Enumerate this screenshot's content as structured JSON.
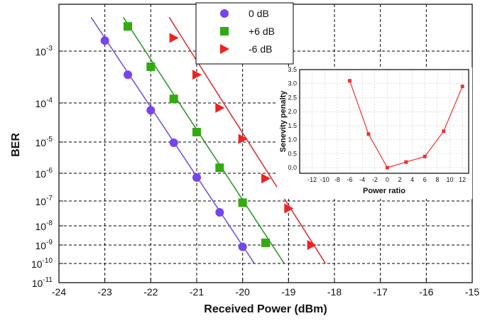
{
  "chart_data": [
    {
      "type": "line",
      "xlabel": "Received Power (dBm)",
      "ylabel": "BER",
      "xlim": [
        -24,
        -15
      ],
      "x_ticks": [
        "-24",
        "-23",
        "-22",
        "-21",
        "-20",
        "-19",
        "-18",
        "-17",
        "-16",
        "-15"
      ],
      "y_scale": "log",
      "y_ticks": [
        "10^-3",
        "10^-4",
        "10^-5",
        "10^-6",
        "10^-7",
        "10^-8",
        "10^-9",
        "10^-10",
        "10^-11"
      ],
      "grid": true,
      "legend_placement": "top-center",
      "series": [
        {
          "name": "0 dB",
          "color": "#7744ee",
          "line_color": "#7755dd",
          "marker": "circle",
          "points": [
            {
              "x": -23.0,
              "y": 0.0016
            },
            {
              "x": -22.5,
              "y": 0.00035
            },
            {
              "x": -22.0,
              "y": 6.5e-05
            },
            {
              "x": -21.5,
              "y": 9.5e-06
            },
            {
              "x": -21.0,
              "y": 7e-07
            },
            {
              "x": -20.5,
              "y": 3.5e-08
            },
            {
              "x": -20.0,
              "y": 8e-10
            }
          ],
          "fit": [
            {
              "x": -23.3,
              "y": 0.0045
            },
            {
              "x": -19.75,
              "y": 1.05e-10
            }
          ]
        },
        {
          "name": "+6 dB",
          "color": "#33aa11",
          "line_color": "#339933",
          "marker": "square",
          "points": [
            {
              "x": -22.5,
              "y": 0.003
            },
            {
              "x": -22.0,
              "y": 0.0005
            },
            {
              "x": -21.5,
              "y": 0.00012
            },
            {
              "x": -21.0,
              "y": 1.8e-05
            },
            {
              "x": -20.5,
              "y": 1.5e-06
            },
            {
              "x": -20.0,
              "y": 8.5e-08
            },
            {
              "x": -19.5,
              "y": 1.3e-09
            }
          ],
          "fit": [
            {
              "x": -22.6,
              "y": 0.0045
            },
            {
              "x": -19.1,
              "y": 1.05e-10
            }
          ]
        },
        {
          "name": "-6 dB",
          "color": "#ee2222",
          "line_color": "#dd3333",
          "marker": "triangle-right",
          "points": [
            {
              "x": -21.5,
              "y": 0.0018
            },
            {
              "x": -21.0,
              "y": 0.00035
            },
            {
              "x": -20.5,
              "y": 7.5e-05
            },
            {
              "x": -20.0,
              "y": 1.2e-05
            },
            {
              "x": -19.5,
              "y": 6.5e-07
            },
            {
              "x": -19.0,
              "y": 5e-08
            },
            {
              "x": -18.5,
              "y": 1e-09
            }
          ],
          "fit": [
            {
              "x": -21.6,
              "y": 0.0045
            },
            {
              "x": -18.2,
              "y": 1.05e-10
            }
          ]
        }
      ]
    },
    {
      "type": "line",
      "xlabel": "Power ratio",
      "ylabel": "Senevity penalty",
      "xlim": [
        -14,
        13
      ],
      "ylim": [
        -0.2,
        3.5
      ],
      "x_ticks": [
        "-12",
        "-10",
        "-8",
        "-6",
        "-4",
        "-2",
        "0",
        "2",
        "4",
        "6",
        "8",
        "10",
        "12"
      ],
      "y_ticks": [
        "0.0",
        "0.5",
        "1.0",
        "1.5",
        "2.0",
        "2.5",
        "3.0",
        "3.5"
      ],
      "grid": true,
      "color": "#ee3333",
      "series": [
        {
          "points": [
            {
              "x": -6,
              "y": 3.1
            },
            {
              "x": -3,
              "y": 1.2
            },
            {
              "x": 0,
              "y": 0.0
            },
            {
              "x": 3,
              "y": 0.2
            },
            {
              "x": 6,
              "y": 0.4
            },
            {
              "x": 9,
              "y": 1.3
            },
            {
              "x": 12,
              "y": 2.9
            }
          ]
        }
      ]
    }
  ]
}
